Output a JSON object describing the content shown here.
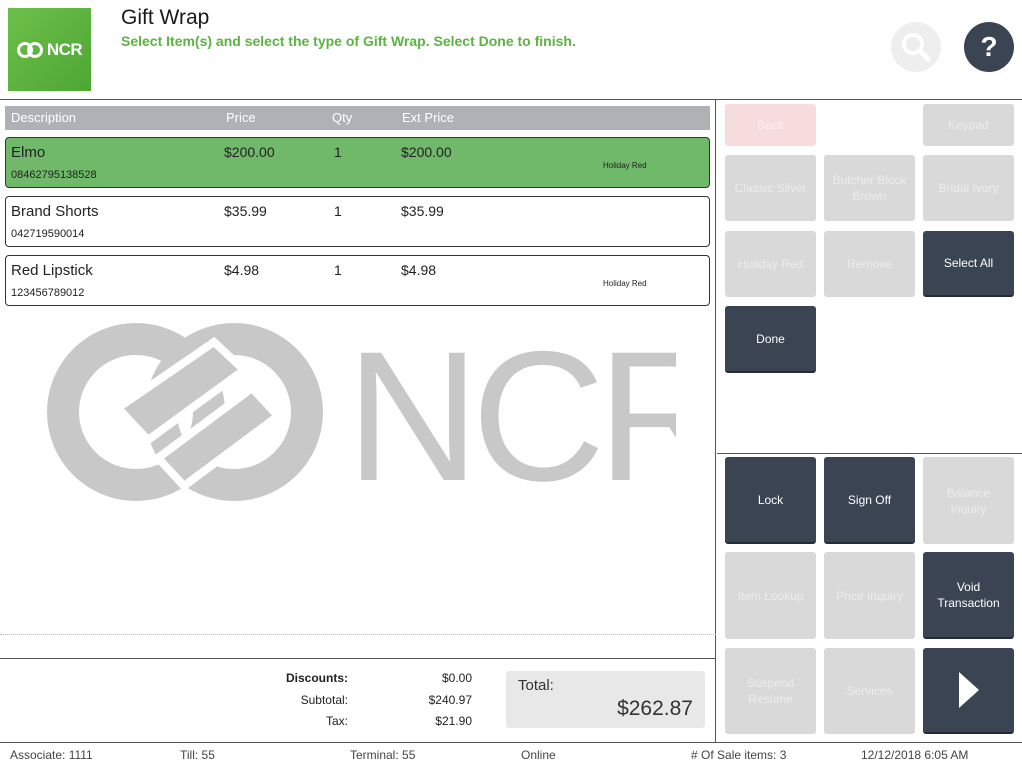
{
  "header": {
    "logo_text": "NCR",
    "title": "Gift Wrap",
    "subtitle": "Select Item(s) and select the type of Gift Wrap. Select Done to finish.",
    "help_label": "?"
  },
  "columns": {
    "description": "Description",
    "price": "Price",
    "qty": "Qty",
    "ext_price": "Ext Price"
  },
  "items": [
    {
      "description": "Elmo",
      "upc": "08462795138528",
      "price": "$200.00",
      "qty": "1",
      "ext_price": "$200.00",
      "gift_wrap": "Holiday Red",
      "selected": true
    },
    {
      "description": "Brand Shorts",
      "upc": "042719590014",
      "price": "$35.99",
      "qty": "1",
      "ext_price": "$35.99",
      "gift_wrap": "",
      "selected": false
    },
    {
      "description": "Red Lipstick",
      "upc": "123456789012",
      "price": "$4.98",
      "qty": "1",
      "ext_price": "$4.98",
      "gift_wrap": "Holiday Red",
      "selected": false
    }
  ],
  "watermark_text": "NCR",
  "totals": {
    "discounts_label": "Discounts:",
    "discounts": "$0.00",
    "subtotal_label": "Subtotal:",
    "subtotal": "$240.97",
    "tax_label": "Tax:",
    "tax": "$21.90",
    "total_label": "Total:",
    "total": "$262.87"
  },
  "action_buttons": {
    "back": "Back",
    "keypad": "Keypad",
    "classic_silver": "Classic Silver",
    "butcher_block_brown": "Butcher Block Brown",
    "bridal_ivory": "Bridal Ivory",
    "holiday_red": "Holiday Red",
    "remove": "Remove",
    "select_all": "Select All",
    "done": "Done"
  },
  "function_buttons": {
    "lock": "Lock",
    "sign_off": "Sign Off",
    "balance_inquiry": "Balance Inquiry",
    "item_lookup": "Item Lookup",
    "price_inquiry": "Price Inquiry",
    "void_transaction": "Void Transaction",
    "suspend_resume": "Suspend Resume",
    "services": "Services"
  },
  "status_bar": {
    "associate": "Associate: 1111",
    "till": "Till: 55",
    "terminal": "Terminal: 55",
    "connection": "Online",
    "sale_items": "# Of Sale items: 3",
    "datetime": "12/12/2018 6:05 AM"
  },
  "colors": {
    "brand_green": "#5cb342",
    "selected_row": "#70b96a",
    "active_button": "#3a4452",
    "disabled_button": "#d9d9d9"
  }
}
